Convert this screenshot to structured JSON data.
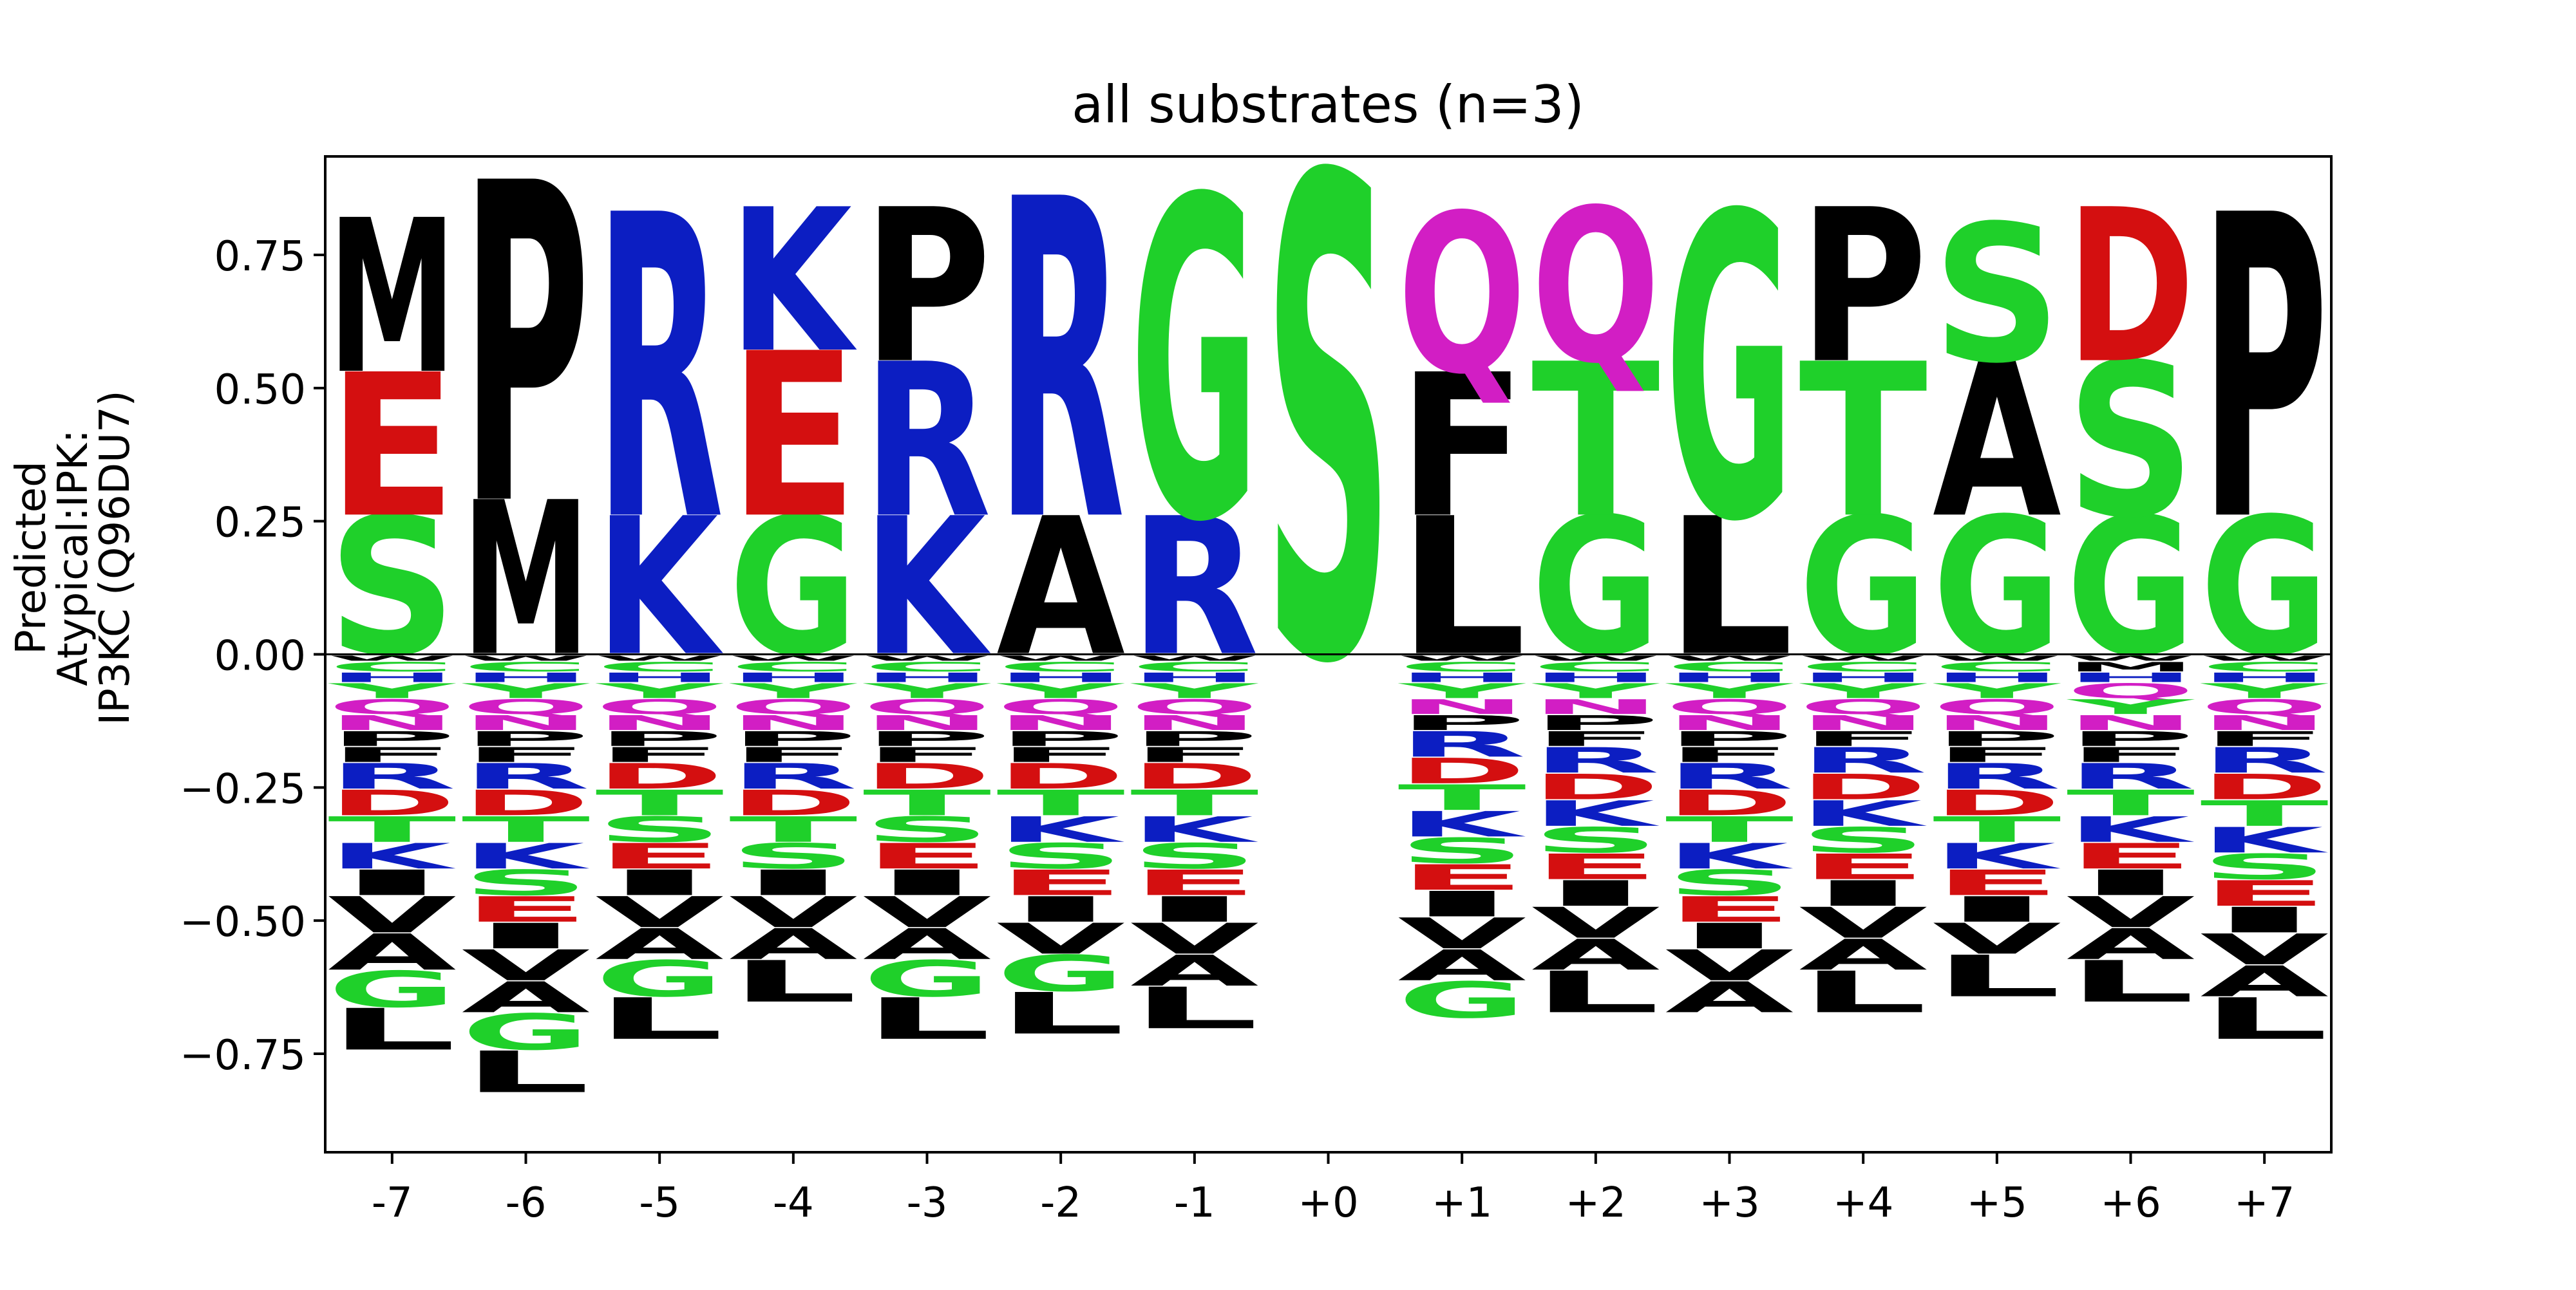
{
  "chart_data": {
    "type": "sequence-logo",
    "title": "all substrates (n=3)",
    "ylabel_lines": [
      "Predicted",
      "Atypical:IPK:",
      "IP3KC (Q96DU7)"
    ],
    "ylim": [
      -0.935,
      0.935
    ],
    "yticks": [
      0.75,
      0.5,
      0.25,
      0.0,
      -0.25,
      -0.5,
      -0.75
    ],
    "ytick_labels": [
      "0.75",
      "0.50",
      "0.25",
      "0.00",
      "−0.25",
      "−0.50",
      "−0.75"
    ],
    "positions": [
      "-7",
      "-6",
      "-5",
      "-4",
      "-3",
      "-2",
      "-1",
      "+0",
      "+1",
      "+2",
      "+3",
      "+4",
      "+5",
      "+6",
      "+7"
    ],
    "colors": {
      "acidic": "#d40f10",
      "basic": "#0c1ec2",
      "polar_small": "#1fd02a",
      "amide": "#d21ec4",
      "hydrophobic": "#000000"
    },
    "residue_colors": {
      "D": "#d40f10",
      "E": "#d40f10",
      "K": "#0c1ec2",
      "R": "#0c1ec2",
      "H": "#0c1ec2",
      "S": "#1fd02a",
      "T": "#1fd02a",
      "G": "#1fd02a",
      "Y": "#1fd02a",
      "C": "#1fd02a",
      "N": "#d21ec4",
      "Q": "#d21ec4",
      "A": "#000000",
      "V": "#000000",
      "L": "#000000",
      "I": "#000000",
      "P": "#000000",
      "F": "#000000",
      "M": "#000000",
      "W": "#000000"
    },
    "stacks": [
      {
        "pos": "-7",
        "pos_letters": [
          [
            "S",
            0.26
          ],
          [
            "E",
            0.27
          ],
          [
            "M",
            0.29
          ]
        ],
        "neg_letters": [
          [
            "W",
            0.012
          ],
          [
            "C",
            0.02
          ],
          [
            "H",
            0.02
          ],
          [
            "Y",
            0.03
          ],
          [
            "Q",
            0.03
          ],
          [
            "N",
            0.03
          ],
          [
            "P",
            0.03
          ],
          [
            "F",
            0.03
          ],
          [
            "R",
            0.05
          ],
          [
            "D",
            0.05
          ],
          [
            "T",
            0.05
          ],
          [
            "K",
            0.05
          ],
          [
            "I",
            0.05
          ],
          [
            "V",
            0.07
          ],
          [
            "A",
            0.07
          ],
          [
            "G",
            0.07
          ],
          [
            "L",
            0.08
          ]
        ]
      },
      {
        "pos": "-6",
        "pos_letters": [
          [
            "M",
            0.29
          ],
          [
            "P",
            0.6
          ]
        ],
        "neg_letters": [
          [
            "W",
            0.012
          ],
          [
            "C",
            0.02
          ],
          [
            "H",
            0.02
          ],
          [
            "Y",
            0.03
          ],
          [
            "Q",
            0.03
          ],
          [
            "N",
            0.03
          ],
          [
            "P",
            0.03
          ],
          [
            "F",
            0.03
          ],
          [
            "R",
            0.05
          ],
          [
            "D",
            0.05
          ],
          [
            "T",
            0.05
          ],
          [
            "K",
            0.05
          ],
          [
            "S",
            0.05
          ],
          [
            "E",
            0.05
          ],
          [
            "I",
            0.05
          ],
          [
            "V",
            0.06
          ],
          [
            "A",
            0.06
          ],
          [
            "G",
            0.07
          ],
          [
            "L",
            0.08
          ]
        ]
      },
      {
        "pos": "-5",
        "pos_letters": [
          [
            "K",
            0.26
          ],
          [
            "R",
            0.57
          ]
        ],
        "neg_letters": [
          [
            "W",
            0.012
          ],
          [
            "C",
            0.02
          ],
          [
            "H",
            0.02
          ],
          [
            "Y",
            0.03
          ],
          [
            "Q",
            0.03
          ],
          [
            "N",
            0.03
          ],
          [
            "P",
            0.03
          ],
          [
            "F",
            0.03
          ],
          [
            "D",
            0.05
          ],
          [
            "T",
            0.05
          ],
          [
            "S",
            0.05
          ],
          [
            "E",
            0.05
          ],
          [
            "I",
            0.05
          ],
          [
            "V",
            0.06
          ],
          [
            "A",
            0.06
          ],
          [
            "G",
            0.07
          ],
          [
            "L",
            0.08
          ]
        ]
      },
      {
        "pos": "-4",
        "pos_letters": [
          [
            "G",
            0.26
          ],
          [
            "E",
            0.31
          ],
          [
            "K",
            0.27
          ]
        ],
        "neg_letters": [
          [
            "W",
            0.012
          ],
          [
            "C",
            0.02
          ],
          [
            "H",
            0.02
          ],
          [
            "Y",
            0.03
          ],
          [
            "Q",
            0.03
          ],
          [
            "N",
            0.03
          ],
          [
            "P",
            0.03
          ],
          [
            "F",
            0.03
          ],
          [
            "R",
            0.05
          ],
          [
            "D",
            0.05
          ],
          [
            "T",
            0.05
          ],
          [
            "S",
            0.05
          ],
          [
            "I",
            0.05
          ],
          [
            "V",
            0.06
          ],
          [
            "A",
            0.06
          ],
          [
            "L",
            0.08
          ]
        ]
      },
      {
        "pos": "-3",
        "pos_letters": [
          [
            "K",
            0.26
          ],
          [
            "R",
            0.29
          ],
          [
            "P",
            0.29
          ]
        ],
        "neg_letters": [
          [
            "W",
            0.012
          ],
          [
            "C",
            0.02
          ],
          [
            "H",
            0.02
          ],
          [
            "Y",
            0.03
          ],
          [
            "Q",
            0.03
          ],
          [
            "N",
            0.03
          ],
          [
            "P",
            0.03
          ],
          [
            "F",
            0.03
          ],
          [
            "D",
            0.05
          ],
          [
            "T",
            0.05
          ],
          [
            "S",
            0.05
          ],
          [
            "E",
            0.05
          ],
          [
            "I",
            0.05
          ],
          [
            "V",
            0.06
          ],
          [
            "A",
            0.06
          ],
          [
            "G",
            0.07
          ],
          [
            "L",
            0.08
          ]
        ]
      },
      {
        "pos": "-2",
        "pos_letters": [
          [
            "A",
            0.26
          ],
          [
            "R",
            0.6
          ]
        ],
        "neg_letters": [
          [
            "W",
            0.012
          ],
          [
            "C",
            0.02
          ],
          [
            "H",
            0.02
          ],
          [
            "Y",
            0.03
          ],
          [
            "Q",
            0.03
          ],
          [
            "N",
            0.03
          ],
          [
            "P",
            0.03
          ],
          [
            "F",
            0.03
          ],
          [
            "D",
            0.05
          ],
          [
            "T",
            0.05
          ],
          [
            "K",
            0.05
          ],
          [
            "S",
            0.05
          ],
          [
            "E",
            0.05
          ],
          [
            "I",
            0.05
          ],
          [
            "V",
            0.06
          ],
          [
            "G",
            0.07
          ],
          [
            "L",
            0.08
          ]
        ]
      },
      {
        "pos": "-1",
        "pos_letters": [
          [
            "R",
            0.26
          ],
          [
            "G",
            0.6
          ]
        ],
        "neg_letters": [
          [
            "W",
            0.012
          ],
          [
            "C",
            0.02
          ],
          [
            "H",
            0.02
          ],
          [
            "Y",
            0.03
          ],
          [
            "Q",
            0.03
          ],
          [
            "N",
            0.03
          ],
          [
            "P",
            0.03
          ],
          [
            "F",
            0.03
          ],
          [
            "D",
            0.05
          ],
          [
            "T",
            0.05
          ],
          [
            "K",
            0.05
          ],
          [
            "S",
            0.05
          ],
          [
            "E",
            0.05
          ],
          [
            "I",
            0.05
          ],
          [
            "V",
            0.06
          ],
          [
            "A",
            0.06
          ],
          [
            "L",
            0.08
          ]
        ]
      },
      {
        "pos": "+0",
        "pos_letters": [
          [
            "S",
            0.9
          ]
        ],
        "neg_letters": []
      },
      {
        "pos": "+1",
        "pos_letters": [
          [
            "L",
            0.26
          ],
          [
            "F",
            0.27
          ],
          [
            "Q",
            0.3
          ]
        ],
        "neg_letters": [
          [
            "W",
            0.012
          ],
          [
            "C",
            0.02
          ],
          [
            "H",
            0.02
          ],
          [
            "Y",
            0.03
          ],
          [
            "N",
            0.03
          ],
          [
            "P",
            0.03
          ],
          [
            "R",
            0.05
          ],
          [
            "D",
            0.05
          ],
          [
            "T",
            0.05
          ],
          [
            "K",
            0.05
          ],
          [
            "S",
            0.05
          ],
          [
            "E",
            0.05
          ],
          [
            "I",
            0.05
          ],
          [
            "V",
            0.06
          ],
          [
            "A",
            0.06
          ],
          [
            "G",
            0.07
          ]
        ]
      },
      {
        "pos": "+2",
        "pos_letters": [
          [
            "G",
            0.26
          ],
          [
            "T",
            0.29
          ],
          [
            "Q",
            0.29
          ]
        ],
        "neg_letters": [
          [
            "W",
            0.012
          ],
          [
            "C",
            0.02
          ],
          [
            "H",
            0.02
          ],
          [
            "Y",
            0.03
          ],
          [
            "N",
            0.03
          ],
          [
            "P",
            0.03
          ],
          [
            "F",
            0.03
          ],
          [
            "R",
            0.05
          ],
          [
            "D",
            0.05
          ],
          [
            "K",
            0.05
          ],
          [
            "S",
            0.05
          ],
          [
            "E",
            0.05
          ],
          [
            "I",
            0.05
          ],
          [
            "V",
            0.06
          ],
          [
            "A",
            0.06
          ],
          [
            "L",
            0.08
          ]
        ]
      },
      {
        "pos": "+3",
        "pos_letters": [
          [
            "L",
            0.26
          ],
          [
            "G",
            0.57
          ]
        ],
        "neg_letters": [
          [
            "W",
            0.012
          ],
          [
            "C",
            0.02
          ],
          [
            "H",
            0.02
          ],
          [
            "Y",
            0.03
          ],
          [
            "Q",
            0.03
          ],
          [
            "N",
            0.03
          ],
          [
            "P",
            0.03
          ],
          [
            "F",
            0.03
          ],
          [
            "R",
            0.05
          ],
          [
            "D",
            0.05
          ],
          [
            "T",
            0.05
          ],
          [
            "K",
            0.05
          ],
          [
            "S",
            0.05
          ],
          [
            "E",
            0.05
          ],
          [
            "I",
            0.05
          ],
          [
            "V",
            0.06
          ],
          [
            "A",
            0.06
          ]
        ]
      },
      {
        "pos": "+4",
        "pos_letters": [
          [
            "G",
            0.26
          ],
          [
            "T",
            0.29
          ],
          [
            "P",
            0.29
          ]
        ],
        "neg_letters": [
          [
            "W",
            0.012
          ],
          [
            "C",
            0.02
          ],
          [
            "H",
            0.02
          ],
          [
            "Y",
            0.03
          ],
          [
            "Q",
            0.03
          ],
          [
            "N",
            0.03
          ],
          [
            "F",
            0.03
          ],
          [
            "R",
            0.05
          ],
          [
            "D",
            0.05
          ],
          [
            "K",
            0.05
          ],
          [
            "S",
            0.05
          ],
          [
            "E",
            0.05
          ],
          [
            "I",
            0.05
          ],
          [
            "V",
            0.06
          ],
          [
            "A",
            0.06
          ],
          [
            "L",
            0.08
          ]
        ]
      },
      {
        "pos": "+5",
        "pos_letters": [
          [
            "G",
            0.26
          ],
          [
            "A",
            0.29
          ],
          [
            "S",
            0.26
          ]
        ],
        "neg_letters": [
          [
            "W",
            0.012
          ],
          [
            "C",
            0.02
          ],
          [
            "H",
            0.02
          ],
          [
            "Y",
            0.03
          ],
          [
            "Q",
            0.03
          ],
          [
            "N",
            0.03
          ],
          [
            "P",
            0.03
          ],
          [
            "F",
            0.03
          ],
          [
            "R",
            0.05
          ],
          [
            "D",
            0.05
          ],
          [
            "T",
            0.05
          ],
          [
            "K",
            0.05
          ],
          [
            "E",
            0.05
          ],
          [
            "I",
            0.05
          ],
          [
            "V",
            0.06
          ],
          [
            "L",
            0.08
          ]
        ]
      },
      {
        "pos": "+6",
        "pos_letters": [
          [
            "G",
            0.26
          ],
          [
            "S",
            0.29
          ],
          [
            "D",
            0.29
          ]
        ],
        "neg_letters": [
          [
            "W",
            0.012
          ],
          [
            "M",
            0.02
          ],
          [
            "H",
            0.02
          ],
          [
            "Q",
            0.03
          ],
          [
            "Y",
            0.03
          ],
          [
            "N",
            0.03
          ],
          [
            "P",
            0.03
          ],
          [
            "F",
            0.03
          ],
          [
            "R",
            0.05
          ],
          [
            "T",
            0.05
          ],
          [
            "K",
            0.05
          ],
          [
            "E",
            0.05
          ],
          [
            "I",
            0.05
          ],
          [
            "V",
            0.06
          ],
          [
            "A",
            0.06
          ],
          [
            "L",
            0.08
          ]
        ]
      },
      {
        "pos": "+7",
        "pos_letters": [
          [
            "G",
            0.26
          ],
          [
            "P",
            0.57
          ]
        ],
        "neg_letters": [
          [
            "W",
            0.012
          ],
          [
            "C",
            0.02
          ],
          [
            "H",
            0.02
          ],
          [
            "Y",
            0.03
          ],
          [
            "Q",
            0.03
          ],
          [
            "N",
            0.03
          ],
          [
            "F",
            0.03
          ],
          [
            "R",
            0.05
          ],
          [
            "D",
            0.05
          ],
          [
            "T",
            0.05
          ],
          [
            "K",
            0.05
          ],
          [
            "S",
            0.05
          ],
          [
            "E",
            0.05
          ],
          [
            "I",
            0.05
          ],
          [
            "V",
            0.06
          ],
          [
            "A",
            0.06
          ],
          [
            "L",
            0.08
          ]
        ]
      }
    ]
  }
}
